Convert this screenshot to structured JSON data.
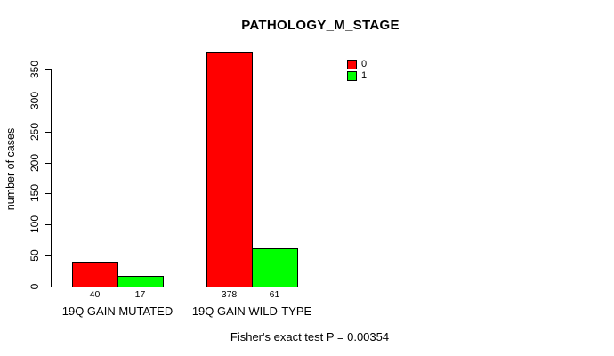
{
  "chart_data": {
    "type": "bar",
    "title": "PATHOLOGY_M_STAGE",
    "ylabel": "number of cases",
    "xlabel": "",
    "categories": [
      "19Q GAIN MUTATED",
      "19Q GAIN WILD-TYPE"
    ],
    "series": [
      {
        "name": "0",
        "color": "#FF0000",
        "values": [
          40,
          378
        ]
      },
      {
        "name": "1",
        "color": "#00FF00",
        "values": [
          17,
          61
        ]
      }
    ],
    "ylim": [
      0,
      350
    ],
    "yticks": [
      0,
      50,
      100,
      150,
      200,
      250,
      300,
      350
    ],
    "grid": false,
    "legend_position": "top-right",
    "bar_border_color": "#000000",
    "footnote": "Fisher's exact test P = 0.00354"
  }
}
